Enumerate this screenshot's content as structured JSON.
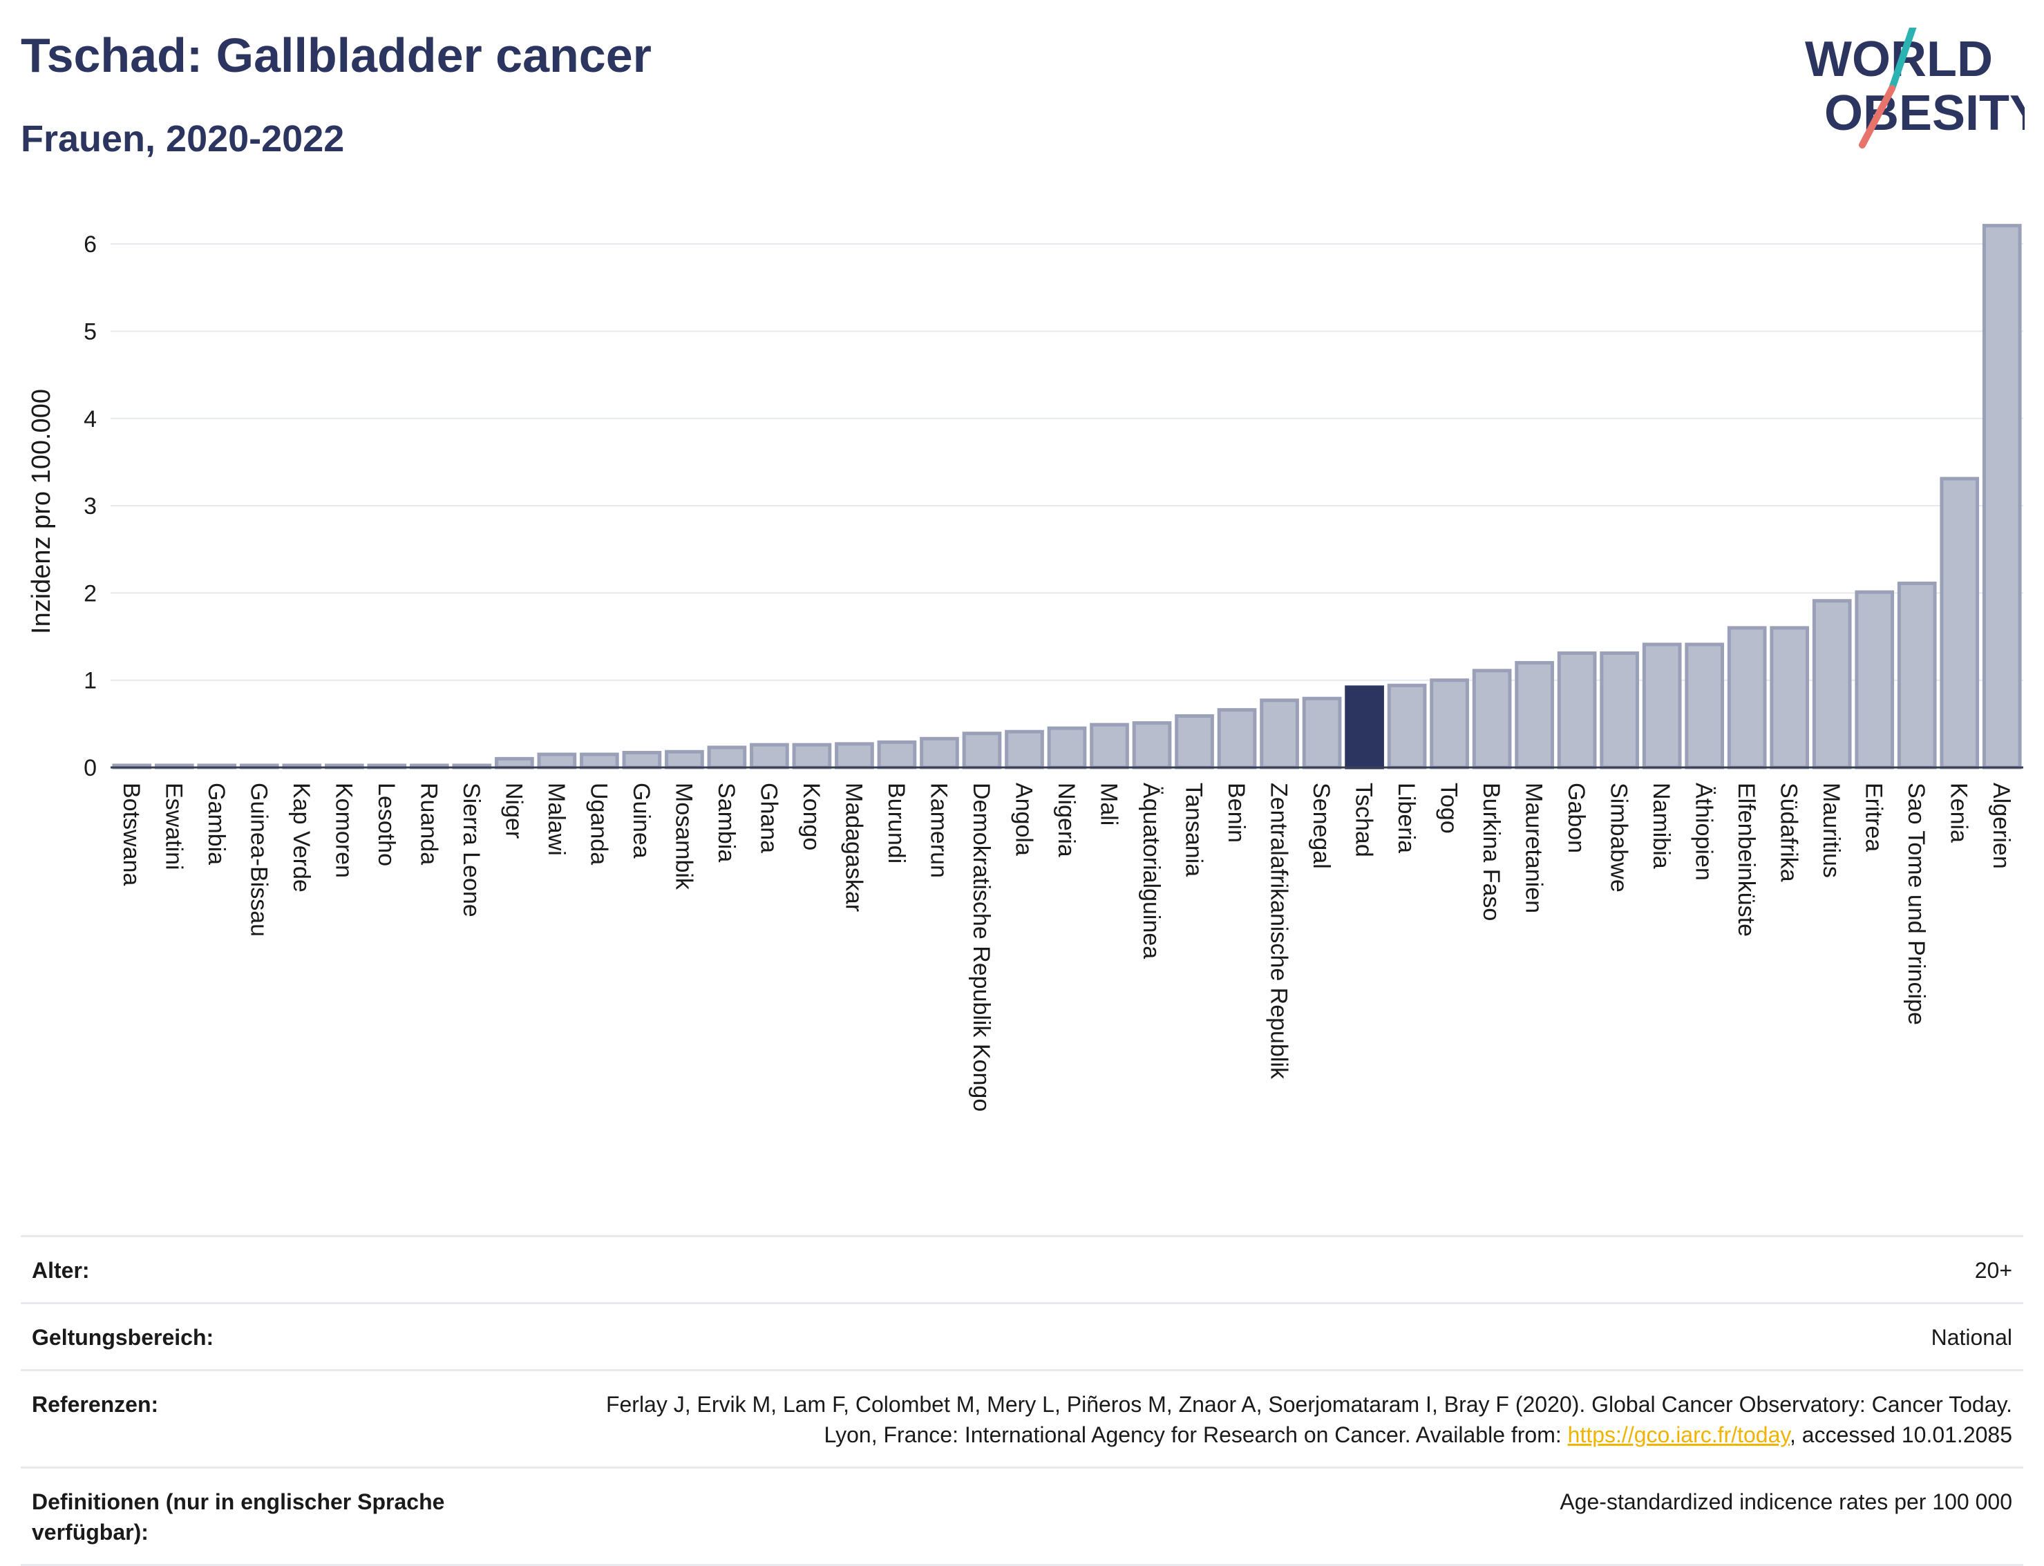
{
  "header": {
    "title": "Tschad: Gallbladder cancer",
    "subtitle": "Frauen, 2020-2022"
  },
  "logo": {
    "line1": "WORLD",
    "line2": "OBESITY"
  },
  "colors": {
    "bar_default": "#b8bdcd",
    "bar_default_stroke": "#9aa0b8",
    "bar_highlight": "#2b3560",
    "text_dark": "#2b3560",
    "logo_teal": "#2bb3b1",
    "logo_coral": "#e8736a",
    "link": "#f0b400"
  },
  "chart_data": {
    "type": "bar",
    "ylabel": "Inzidenz pro 100.000",
    "ylim": [
      0,
      6.5
    ],
    "yticks": [
      0,
      1,
      2,
      3,
      4,
      5,
      6
    ],
    "grid": true,
    "highlight": "Tschad",
    "categories": [
      "Botswana",
      "Eswatini",
      "Gambia",
      "Guinea-Bissau",
      "Kap Verde",
      "Komoren",
      "Lesotho",
      "Ruanda",
      "Sierra Leone",
      "Niger",
      "Malawi",
      "Uganda",
      "Guinea",
      "Mosambik",
      "Sambia",
      "Ghana",
      "Kongo",
      "Madagaskar",
      "Burundi",
      "Kamerun",
      "Demokratische Republik Kongo",
      "Angola",
      "Nigeria",
      "Mali",
      "Äquatorialguinea",
      "Tansania",
      "Benin",
      "Zentralafrikanische Republik",
      "Senegal",
      "Tschad",
      "Liberia",
      "Togo",
      "Burkina Faso",
      "Mauretanien",
      "Gabon",
      "Simbabwe",
      "Namibia",
      "Äthiopien",
      "Elfenbeinküste",
      "Südafrika",
      "Mauritius",
      "Eritrea",
      "Sao Tome und Principe",
      "Kenia",
      "Algerien"
    ],
    "values": [
      0.02,
      0.02,
      0.02,
      0.02,
      0.02,
      0.02,
      0.02,
      0.02,
      0.02,
      0.1,
      0.15,
      0.15,
      0.17,
      0.18,
      0.23,
      0.26,
      0.26,
      0.27,
      0.29,
      0.33,
      0.39,
      0.41,
      0.45,
      0.49,
      0.51,
      0.59,
      0.66,
      0.77,
      0.79,
      0.92,
      0.94,
      1.0,
      1.11,
      1.2,
      1.31,
      1.31,
      1.41,
      1.41,
      1.6,
      1.6,
      1.91,
      2.01,
      2.11,
      3.31,
      6.21
    ]
  },
  "info": [
    {
      "label": "Alter:",
      "value": "20+"
    },
    {
      "label": "Geltungsbereich:",
      "value": "National"
    },
    {
      "label": "Referenzen:",
      "value_pre": "Ferlay J, Ervik M, Lam F, Colombet M, Mery L, Piñeros M, Znaor A, Soerjomataram I, Bray F (2020). Global Cancer Observatory: Cancer Today. Lyon, France: International Agency for Research on Cancer. Available from: ",
      "link": "https://gco.iarc.fr/today",
      "value_post": ", accessed 10.01.2085"
    },
    {
      "label": "Definitionen (nur in englischer Sprache verfügbar):",
      "value": "Age-standardized indicence rates per 100 000"
    }
  ]
}
